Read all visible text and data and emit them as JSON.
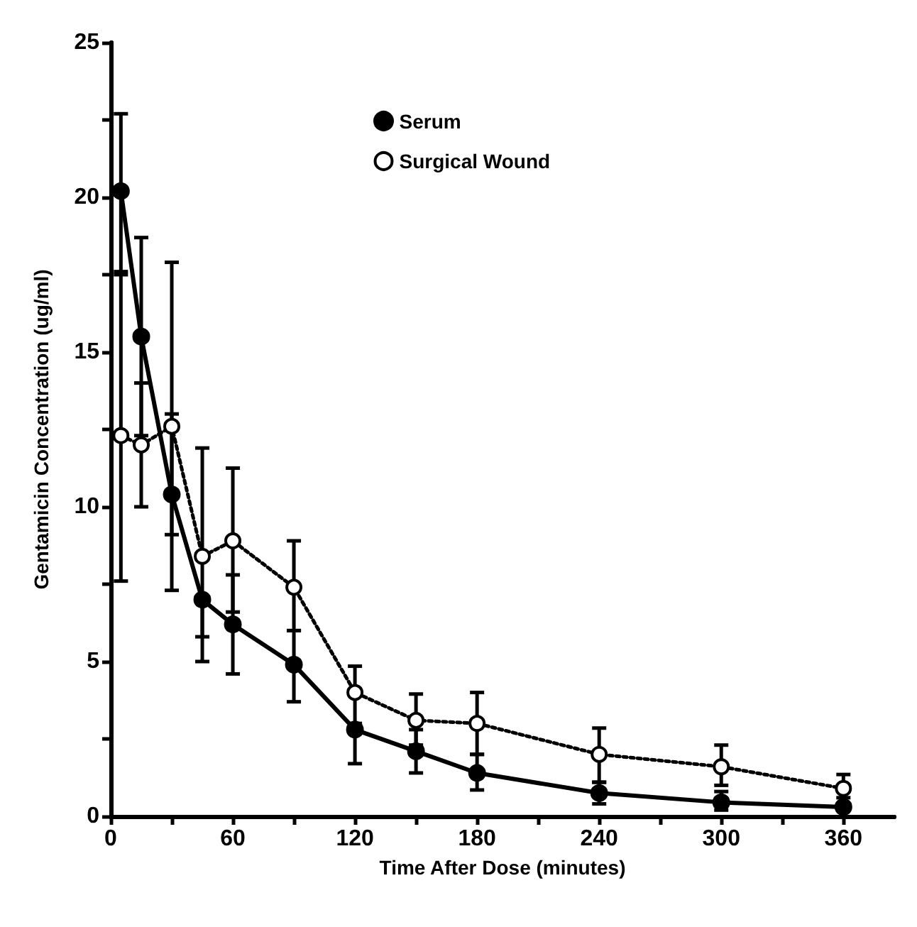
{
  "chart_data": {
    "type": "line",
    "xlabel": "Time After Dose (minutes)",
    "ylabel": "Gentamicin Concentration (ug/ml)",
    "x": [
      5,
      15,
      30,
      45,
      60,
      90,
      120,
      150,
      180,
      240,
      300,
      360
    ],
    "series": [
      {
        "name": "Serum",
        "color": "#000000",
        "line_style": "solid",
        "marker": "circle",
        "values": [
          20.2,
          15.5,
          10.4,
          7.0,
          6.2,
          4.9,
          2.8,
          2.1,
          1.4,
          0.75,
          0.45,
          0.3
        ],
        "errors": [
          [
            17.6,
            22.7
          ],
          [
            12.3,
            18.7
          ],
          [
            7.3,
            13.0
          ],
          [
            5.0,
            7.0
          ],
          [
            4.6,
            7.8
          ],
          [
            3.7,
            6.0
          ],
          [
            1.7,
            2.8
          ],
          [
            1.4,
            2.8
          ],
          [
            0.85,
            2.0
          ],
          [
            0.4,
            1.1
          ],
          [
            0.2,
            0.8
          ],
          [
            0.3,
            0.6
          ]
        ]
      },
      {
        "name": "Surgical Wound",
        "color": "#000000",
        "line_style": "dotted",
        "marker": "circle",
        "values": [
          12.3,
          12.0,
          12.6,
          8.4,
          8.9,
          7.4,
          4.0,
          3.1,
          3.0,
          2.0,
          1.6,
          0.9
        ],
        "errors": [
          [
            7.6,
            17.5
          ],
          [
            10.0,
            14.0
          ],
          [
            9.1,
            17.9
          ],
          [
            5.8,
            11.9
          ],
          [
            6.6,
            11.25
          ],
          [
            6.0,
            8.9
          ],
          [
            3.0,
            4.85
          ],
          [
            2.3,
            3.95
          ],
          [
            2.0,
            4.0
          ],
          [
            1.1,
            2.85
          ],
          [
            1.0,
            2.3
          ],
          [
            0.9,
            1.35
          ]
        ]
      }
    ],
    "xlim": [
      0,
      385
    ],
    "xticks": [
      0,
      {
        "value": 30,
        "label": null
      },
      60,
      {
        "value": 90,
        "label": null
      },
      120,
      {
        "value": 150,
        "label": null
      },
      180,
      {
        "value": 210,
        "label": null
      },
      240,
      {
        "value": 270,
        "label": null
      },
      300,
      {
        "value": 330,
        "label": null
      },
      360
    ],
    "ylim": [
      0,
      25
    ],
    "yticks": [
      0,
      {
        "value": 2.5,
        "label": null
      },
      5,
      {
        "value": 7.5,
        "label": null
      },
      10,
      {
        "value": 12.5,
        "label": null
      },
      15,
      {
        "value": 17.5,
        "label": null
      },
      20,
      {
        "value": 22.5,
        "label": null
      },
      25
    ],
    "grid": false,
    "legend": "top"
  }
}
